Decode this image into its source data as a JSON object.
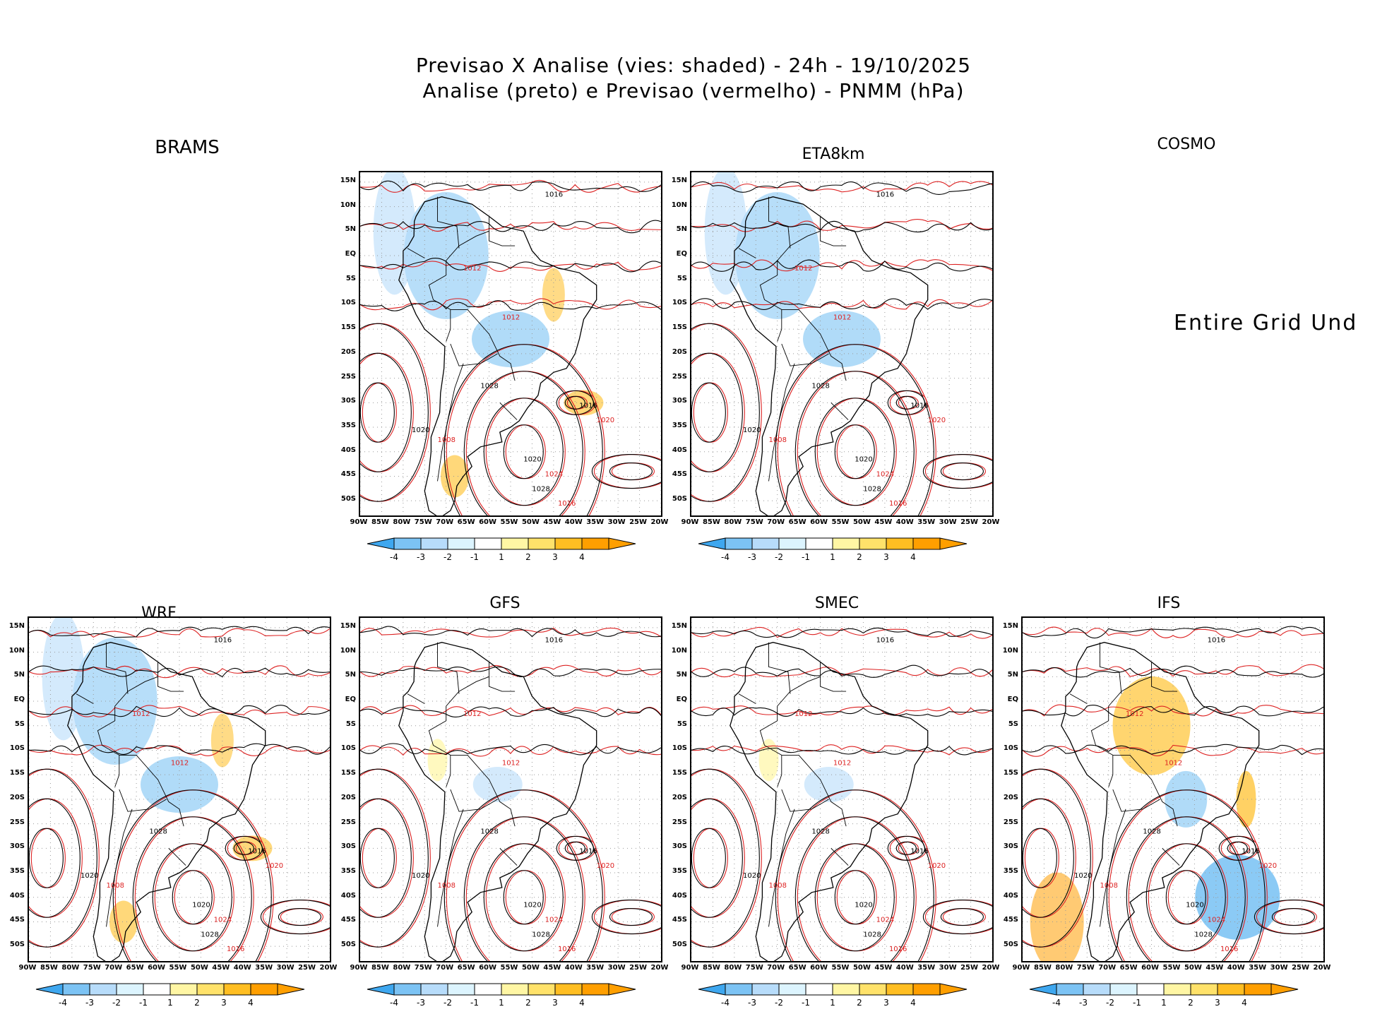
{
  "title": {
    "line1": "Previsao X Analise (vies: shaded) - 24h - 19/10/2025",
    "line2": "Analise (preto) e Previsao (vermelho) - PNMM (hPa)"
  },
  "axes": {
    "y_ticks": [
      "15N",
      "10N",
      "5N",
      "EQ",
      "5S",
      "10S",
      "15S",
      "20S",
      "25S",
      "30S",
      "35S",
      "40S",
      "45S",
      "50S"
    ],
    "x_ticks": [
      "90W",
      "85W",
      "80W",
      "75W",
      "70W",
      "65W",
      "60W",
      "55W",
      "50W",
      "45W",
      "40W",
      "35W",
      "30W",
      "25W",
      "20W"
    ]
  },
  "colorbar": {
    "labels": [
      "-4",
      "-3",
      "-2",
      "-1",
      "1",
      "2",
      "3",
      "4"
    ],
    "colors": [
      "#3ea7ef",
      "#7cc3f4",
      "#b7dcfa",
      "#dcf4fe",
      "#ffffff",
      "#fff6a4",
      "#ffe26a",
      "#ffbe22",
      "#ff9f00"
    ]
  },
  "colors": {
    "analysis_contour": "#000000",
    "forecast_contour": "#dd2222",
    "negative_bias": "#7cc3f4",
    "positive_bias": "#ffbe22"
  },
  "panels": {
    "brams": {
      "title": "BRAMS"
    },
    "eta8km": {
      "title": "ETA8km"
    },
    "cosmo": {
      "title": "COSMO",
      "message": "Entire Grid Und"
    },
    "wrf": {
      "title": "WRF"
    },
    "gfs": {
      "title": "GFS"
    },
    "smec": {
      "title": "SMEC"
    },
    "ifs": {
      "title": "IFS"
    }
  },
  "contour_labels": {
    "black": [
      "1016",
      "1012",
      "1020",
      "1024",
      "1028",
      "1008"
    ],
    "red": [
      "1016",
      "1012",
      "1020",
      "1024",
      "1008"
    ]
  }
}
